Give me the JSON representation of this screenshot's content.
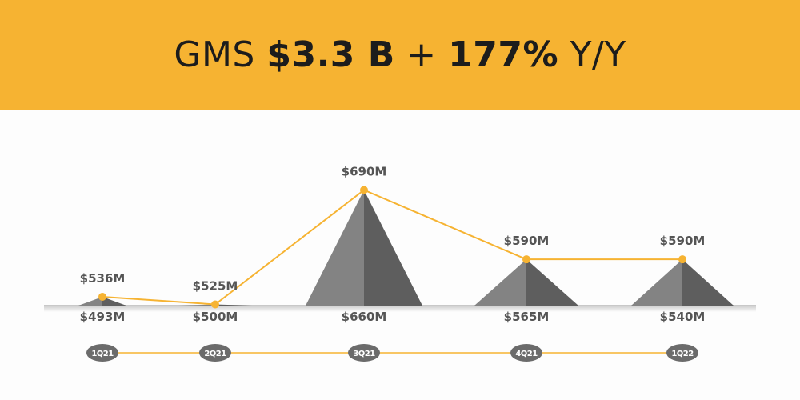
{
  "header": {
    "prefix": "GMS",
    "value": "$3.3 B",
    "plus": "+",
    "growth": "177%",
    "suffix": "Y/Y"
  },
  "colors": {
    "accent": "#f6b332",
    "peak_light": "#838383",
    "peak_dark": "#5e5e5e",
    "label": "#555555",
    "pill": "#6b6b6b"
  },
  "chart_data": {
    "type": "line",
    "categories": [
      "1Q21",
      "2Q21",
      "3Q21",
      "4Q21",
      "1Q22"
    ],
    "series": [
      {
        "values": [
          536,
          525,
          690,
          590,
          590
        ],
        "labels": [
          "$536M",
          "$525M",
          "$690M",
          "$590M",
          "$590M"
        ]
      },
      {
        "values": [
          493,
          500,
          660,
          565,
          540
        ],
        "labels": [
          "$493M",
          "$500M",
          "$660M",
          "$565M",
          "$540M"
        ]
      }
    ],
    "title": "",
    "xlabel": "",
    "ylabel": ""
  }
}
